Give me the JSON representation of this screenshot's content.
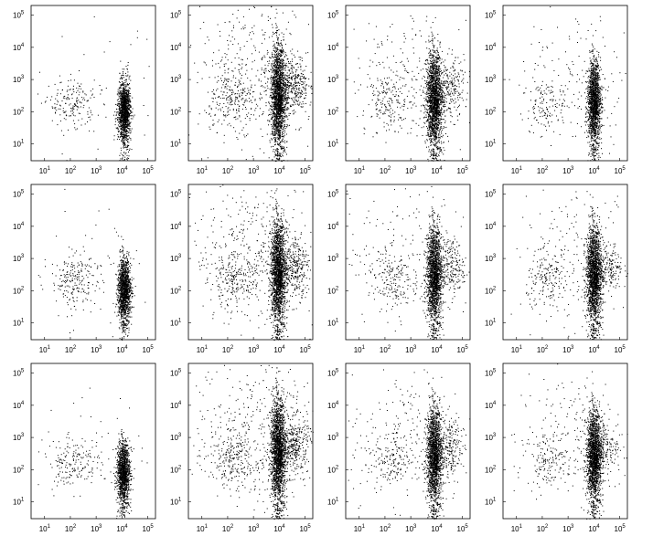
{
  "figure": {
    "rows": 3,
    "cols": 4,
    "background": "#ffffff",
    "dot_color": "#000000"
  },
  "chart_data": [
    {
      "type": "scatter",
      "row": 0,
      "col": 0,
      "xscale": "log",
      "yscale": "log",
      "xlim": [
        3,
        200000
      ],
      "ylim": [
        3,
        200000
      ],
      "xticks": [
        {
          "base": "10",
          "exp": "1"
        },
        {
          "base": "10",
          "exp": "2"
        },
        {
          "base": "10",
          "exp": "3"
        },
        {
          "base": "10",
          "exp": "4"
        },
        {
          "base": "10",
          "exp": "5"
        }
      ],
      "yticks": [
        {
          "base": "10",
          "exp": "1"
        },
        {
          "base": "10",
          "exp": "2"
        },
        {
          "base": "10",
          "exp": "3"
        },
        {
          "base": "10",
          "exp": "4"
        },
        {
          "base": "10",
          "exp": "5"
        }
      ],
      "populations": [
        {
          "x_center": 12000,
          "y_center": 120,
          "x_spread": 0.12,
          "y_spread": 0.45,
          "count": 1400,
          "shape": "column"
        },
        {
          "x_center": 120,
          "y_center": 180,
          "x_spread": 0.45,
          "y_spread": 0.35,
          "count": 160,
          "shape": "blob"
        },
        {
          "x_center": 1000,
          "y_center": 300,
          "x_spread": 1.2,
          "y_spread": 1.0,
          "count": 60,
          "shape": "scatter"
        }
      ]
    },
    {
      "type": "scatter",
      "row": 0,
      "col": 1,
      "xscale": "log",
      "yscale": "log",
      "xlim": [
        3,
        200000
      ],
      "ylim": [
        3,
        200000
      ],
      "xticks": [
        {
          "base": "10",
          "exp": "1"
        },
        {
          "base": "10",
          "exp": "2"
        },
        {
          "base": "10",
          "exp": "3"
        },
        {
          "base": "10",
          "exp": "4"
        },
        {
          "base": "10",
          "exp": "5"
        }
      ],
      "yticks": [
        {
          "base": "10",
          "exp": "1"
        },
        {
          "base": "10",
          "exp": "2"
        },
        {
          "base": "10",
          "exp": "3"
        },
        {
          "base": "10",
          "exp": "4"
        },
        {
          "base": "10",
          "exp": "5"
        }
      ],
      "populations": [
        {
          "x_center": 9000,
          "y_center": 400,
          "x_spread": 0.14,
          "y_spread": 0.75,
          "count": 2200,
          "shape": "column"
        },
        {
          "x_center": 40000,
          "y_center": 700,
          "x_spread": 0.25,
          "y_spread": 0.45,
          "count": 300,
          "shape": "blob"
        },
        {
          "x_center": 150,
          "y_center": 200,
          "x_spread": 0.45,
          "y_spread": 0.4,
          "count": 180,
          "shape": "blob"
        },
        {
          "x_center": 1000,
          "y_center": 1500,
          "x_spread": 1.2,
          "y_spread": 1.1,
          "count": 420,
          "shape": "scatter"
        }
      ]
    },
    {
      "type": "scatter",
      "row": 0,
      "col": 2,
      "xscale": "log",
      "yscale": "log",
      "xlim": [
        3,
        200000
      ],
      "ylim": [
        3,
        200000
      ],
      "xticks": [
        {
          "base": "10",
          "exp": "1"
        },
        {
          "base": "10",
          "exp": "2"
        },
        {
          "base": "10",
          "exp": "3"
        },
        {
          "base": "10",
          "exp": "4"
        },
        {
          "base": "10",
          "exp": "5"
        }
      ],
      "yticks": [
        {
          "base": "10",
          "exp": "1"
        },
        {
          "base": "10",
          "exp": "2"
        },
        {
          "base": "10",
          "exp": "3"
        },
        {
          "base": "10",
          "exp": "4"
        },
        {
          "base": "10",
          "exp": "5"
        }
      ],
      "populations": [
        {
          "x_center": 8000,
          "y_center": 300,
          "x_spread": 0.15,
          "y_spread": 0.7,
          "count": 2000,
          "shape": "column"
        },
        {
          "x_center": 35000,
          "y_center": 500,
          "x_spread": 0.25,
          "y_spread": 0.45,
          "count": 200,
          "shape": "blob"
        },
        {
          "x_center": 150,
          "y_center": 200,
          "x_spread": 0.4,
          "y_spread": 0.4,
          "count": 140,
          "shape": "blob"
        },
        {
          "x_center": 1000,
          "y_center": 1000,
          "x_spread": 1.2,
          "y_spread": 1.0,
          "count": 260,
          "shape": "scatter"
        }
      ]
    },
    {
      "type": "scatter",
      "row": 0,
      "col": 3,
      "xscale": "log",
      "yscale": "log",
      "xlim": [
        3,
        200000
      ],
      "ylim": [
        3,
        200000
      ],
      "xticks": [
        {
          "base": "10",
          "exp": "1"
        },
        {
          "base": "10",
          "exp": "2"
        },
        {
          "base": "10",
          "exp": "3"
        },
        {
          "base": "10",
          "exp": "4"
        },
        {
          "base": "10",
          "exp": "5"
        }
      ],
      "yticks": [
        {
          "base": "10",
          "exp": "1"
        },
        {
          "base": "10",
          "exp": "2"
        },
        {
          "base": "10",
          "exp": "3"
        },
        {
          "base": "10",
          "exp": "4"
        },
        {
          "base": "10",
          "exp": "5"
        }
      ],
      "populations": [
        {
          "x_center": 10000,
          "y_center": 250,
          "x_spread": 0.12,
          "y_spread": 0.6,
          "count": 1700,
          "shape": "column"
        },
        {
          "x_center": 150,
          "y_center": 150,
          "x_spread": 0.4,
          "y_spread": 0.35,
          "count": 110,
          "shape": "blob"
        },
        {
          "x_center": 2000,
          "y_center": 800,
          "x_spread": 1.2,
          "y_spread": 1.0,
          "count": 180,
          "shape": "scatter"
        }
      ]
    },
    {
      "type": "scatter",
      "row": 1,
      "col": 0,
      "xscale": "log",
      "yscale": "log",
      "xlim": [
        3,
        200000
      ],
      "ylim": [
        3,
        200000
      ],
      "xticks": [
        {
          "base": "10",
          "exp": "1"
        },
        {
          "base": "10",
          "exp": "2"
        },
        {
          "base": "10",
          "exp": "3"
        },
        {
          "base": "10",
          "exp": "4"
        },
        {
          "base": "10",
          "exp": "5"
        }
      ],
      "yticks": [
        {
          "base": "10",
          "exp": "1"
        },
        {
          "base": "10",
          "exp": "2"
        },
        {
          "base": "10",
          "exp": "3"
        },
        {
          "base": "10",
          "exp": "4"
        },
        {
          "base": "10",
          "exp": "5"
        }
      ],
      "populations": [
        {
          "x_center": 12000,
          "y_center": 130,
          "x_spread": 0.12,
          "y_spread": 0.45,
          "count": 1400,
          "shape": "column"
        },
        {
          "x_center": 130,
          "y_center": 220,
          "x_spread": 0.45,
          "y_spread": 0.4,
          "count": 200,
          "shape": "blob"
        },
        {
          "x_center": 1000,
          "y_center": 400,
          "x_spread": 1.2,
          "y_spread": 1.0,
          "count": 60,
          "shape": "scatter"
        }
      ]
    },
    {
      "type": "scatter",
      "row": 1,
      "col": 1,
      "xscale": "log",
      "yscale": "log",
      "xlim": [
        3,
        200000
      ],
      "ylim": [
        3,
        200000
      ],
      "xticks": [
        {
          "base": "10",
          "exp": "1"
        },
        {
          "base": "10",
          "exp": "2"
        },
        {
          "base": "10",
          "exp": "3"
        },
        {
          "base": "10",
          "exp": "4"
        },
        {
          "base": "10",
          "exp": "5"
        }
      ],
      "yticks": [
        {
          "base": "10",
          "exp": "1"
        },
        {
          "base": "10",
          "exp": "2"
        },
        {
          "base": "10",
          "exp": "3"
        },
        {
          "base": "10",
          "exp": "4"
        },
        {
          "base": "10",
          "exp": "5"
        }
      ],
      "populations": [
        {
          "x_center": 9000,
          "y_center": 500,
          "x_spread": 0.14,
          "y_spread": 0.75,
          "count": 2200,
          "shape": "column"
        },
        {
          "x_center": 40000,
          "y_center": 600,
          "x_spread": 0.25,
          "y_spread": 0.45,
          "count": 280,
          "shape": "blob"
        },
        {
          "x_center": 150,
          "y_center": 200,
          "x_spread": 0.45,
          "y_spread": 0.4,
          "count": 180,
          "shape": "blob"
        },
        {
          "x_center": 1000,
          "y_center": 1500,
          "x_spread": 1.2,
          "y_spread": 1.1,
          "count": 420,
          "shape": "scatter"
        }
      ]
    },
    {
      "type": "scatter",
      "row": 1,
      "col": 2,
      "xscale": "log",
      "yscale": "log",
      "xlim": [
        3,
        200000
      ],
      "ylim": [
        3,
        200000
      ],
      "xticks": [
        {
          "base": "10",
          "exp": "1"
        },
        {
          "base": "10",
          "exp": "2"
        },
        {
          "base": "10",
          "exp": "3"
        },
        {
          "base": "10",
          "exp": "4"
        },
        {
          "base": "10",
          "exp": "5"
        }
      ],
      "yticks": [
        {
          "base": "10",
          "exp": "1"
        },
        {
          "base": "10",
          "exp": "2"
        },
        {
          "base": "10",
          "exp": "3"
        },
        {
          "base": "10",
          "exp": "4"
        },
        {
          "base": "10",
          "exp": "5"
        }
      ],
      "populations": [
        {
          "x_center": 8000,
          "y_center": 400,
          "x_spread": 0.14,
          "y_spread": 0.7,
          "count": 1900,
          "shape": "column"
        },
        {
          "x_center": 35000,
          "y_center": 600,
          "x_spread": 0.25,
          "y_spread": 0.45,
          "count": 200,
          "shape": "blob"
        },
        {
          "x_center": 150,
          "y_center": 200,
          "x_spread": 0.4,
          "y_spread": 0.4,
          "count": 130,
          "shape": "blob"
        },
        {
          "x_center": 1000,
          "y_center": 1000,
          "x_spread": 1.2,
          "y_spread": 1.0,
          "count": 240,
          "shape": "scatter"
        }
      ]
    },
    {
      "type": "scatter",
      "row": 1,
      "col": 3,
      "xscale": "log",
      "yscale": "log",
      "xlim": [
        3,
        200000
      ],
      "ylim": [
        3,
        200000
      ],
      "xticks": [
        {
          "base": "10",
          "exp": "1"
        },
        {
          "base": "10",
          "exp": "2"
        },
        {
          "base": "10",
          "exp": "3"
        },
        {
          "base": "10",
          "exp": "4"
        },
        {
          "base": "10",
          "exp": "5"
        }
      ],
      "yticks": [
        {
          "base": "10",
          "exp": "1"
        },
        {
          "base": "10",
          "exp": "2"
        },
        {
          "base": "10",
          "exp": "3"
        },
        {
          "base": "10",
          "exp": "4"
        },
        {
          "base": "10",
          "exp": "5"
        }
      ],
      "populations": [
        {
          "x_center": 10000,
          "y_center": 400,
          "x_spread": 0.14,
          "y_spread": 0.7,
          "count": 2000,
          "shape": "column"
        },
        {
          "x_center": 40000,
          "y_center": 500,
          "x_spread": 0.25,
          "y_spread": 0.4,
          "count": 160,
          "shape": "blob"
        },
        {
          "x_center": 150,
          "y_center": 200,
          "x_spread": 0.4,
          "y_spread": 0.4,
          "count": 140,
          "shape": "blob"
        },
        {
          "x_center": 2000,
          "y_center": 1000,
          "x_spread": 1.2,
          "y_spread": 1.0,
          "count": 260,
          "shape": "scatter"
        }
      ]
    },
    {
      "type": "scatter",
      "row": 2,
      "col": 0,
      "xscale": "log",
      "yscale": "log",
      "xlim": [
        3,
        200000
      ],
      "ylim": [
        3,
        200000
      ],
      "xticks": [
        {
          "base": "10",
          "exp": "1"
        },
        {
          "base": "10",
          "exp": "2"
        },
        {
          "base": "10",
          "exp": "3"
        },
        {
          "base": "10",
          "exp": "4"
        },
        {
          "base": "10",
          "exp": "5"
        }
      ],
      "yticks": [
        {
          "base": "10",
          "exp": "1"
        },
        {
          "base": "10",
          "exp": "2"
        },
        {
          "base": "10",
          "exp": "3"
        },
        {
          "base": "10",
          "exp": "4"
        },
        {
          "base": "10",
          "exp": "5"
        }
      ],
      "populations": [
        {
          "x_center": 11000,
          "y_center": 100,
          "x_spread": 0.12,
          "y_spread": 0.45,
          "count": 1400,
          "shape": "column"
        },
        {
          "x_center": 120,
          "y_center": 180,
          "x_spread": 0.45,
          "y_spread": 0.35,
          "count": 160,
          "shape": "blob"
        },
        {
          "x_center": 1000,
          "y_center": 300,
          "x_spread": 1.2,
          "y_spread": 1.0,
          "count": 60,
          "shape": "scatter"
        }
      ]
    },
    {
      "type": "scatter",
      "row": 2,
      "col": 1,
      "xscale": "log",
      "yscale": "log",
      "xlim": [
        3,
        200000
      ],
      "ylim": [
        3,
        200000
      ],
      "xticks": [
        {
          "base": "10",
          "exp": "1"
        },
        {
          "base": "10",
          "exp": "2"
        },
        {
          "base": "10",
          "exp": "3"
        },
        {
          "base": "10",
          "exp": "4"
        },
        {
          "base": "10",
          "exp": "5"
        }
      ],
      "yticks": [
        {
          "base": "10",
          "exp": "1"
        },
        {
          "base": "10",
          "exp": "2"
        },
        {
          "base": "10",
          "exp": "3"
        },
        {
          "base": "10",
          "exp": "4"
        },
        {
          "base": "10",
          "exp": "5"
        }
      ],
      "populations": [
        {
          "x_center": 9000,
          "y_center": 500,
          "x_spread": 0.14,
          "y_spread": 0.75,
          "count": 2200,
          "shape": "column"
        },
        {
          "x_center": 40000,
          "y_center": 600,
          "x_spread": 0.25,
          "y_spread": 0.45,
          "count": 300,
          "shape": "blob"
        },
        {
          "x_center": 150,
          "y_center": 200,
          "x_spread": 0.45,
          "y_spread": 0.4,
          "count": 180,
          "shape": "blob"
        },
        {
          "x_center": 1000,
          "y_center": 1500,
          "x_spread": 1.2,
          "y_spread": 1.1,
          "count": 420,
          "shape": "scatter"
        }
      ]
    },
    {
      "type": "scatter",
      "row": 2,
      "col": 2,
      "xscale": "log",
      "yscale": "log",
      "xlim": [
        3,
        200000
      ],
      "ylim": [
        3,
        200000
      ],
      "xticks": [
        {
          "base": "10",
          "exp": "1"
        },
        {
          "base": "10",
          "exp": "2"
        },
        {
          "base": "10",
          "exp": "3"
        },
        {
          "base": "10",
          "exp": "4"
        },
        {
          "base": "10",
          "exp": "5"
        }
      ],
      "yticks": [
        {
          "base": "10",
          "exp": "1"
        },
        {
          "base": "10",
          "exp": "2"
        },
        {
          "base": "10",
          "exp": "3"
        },
        {
          "base": "10",
          "exp": "4"
        },
        {
          "base": "10",
          "exp": "5"
        }
      ],
      "populations": [
        {
          "x_center": 8000,
          "y_center": 350,
          "x_spread": 0.14,
          "y_spread": 0.7,
          "count": 1900,
          "shape": "column"
        },
        {
          "x_center": 35000,
          "y_center": 500,
          "x_spread": 0.25,
          "y_spread": 0.45,
          "count": 200,
          "shape": "blob"
        },
        {
          "x_center": 150,
          "y_center": 150,
          "x_spread": 0.4,
          "y_spread": 0.4,
          "count": 130,
          "shape": "blob"
        },
        {
          "x_center": 1000,
          "y_center": 1000,
          "x_spread": 1.2,
          "y_spread": 1.0,
          "count": 260,
          "shape": "scatter"
        }
      ]
    },
    {
      "type": "scatter",
      "row": 2,
      "col": 3,
      "xscale": "log",
      "yscale": "log",
      "xlim": [
        3,
        200000
      ],
      "ylim": [
        3,
        200000
      ],
      "xticks": [
        {
          "base": "10",
          "exp": "1"
        },
        {
          "base": "10",
          "exp": "2"
        },
        {
          "base": "10",
          "exp": "3"
        },
        {
          "base": "10",
          "exp": "4"
        },
        {
          "base": "10",
          "exp": "5"
        }
      ],
      "yticks": [
        {
          "base": "10",
          "exp": "1"
        },
        {
          "base": "10",
          "exp": "2"
        },
        {
          "base": "10",
          "exp": "3"
        },
        {
          "base": "10",
          "exp": "4"
        },
        {
          "base": "10",
          "exp": "5"
        }
      ],
      "populations": [
        {
          "x_center": 10000,
          "y_center": 350,
          "x_spread": 0.14,
          "y_spread": 0.65,
          "count": 1900,
          "shape": "column"
        },
        {
          "x_center": 30000,
          "y_center": 500,
          "x_spread": 0.25,
          "y_spread": 0.4,
          "count": 140,
          "shape": "blob"
        },
        {
          "x_center": 150,
          "y_center": 200,
          "x_spread": 0.4,
          "y_spread": 0.4,
          "count": 140,
          "shape": "blob"
        },
        {
          "x_center": 2000,
          "y_center": 1000,
          "x_spread": 1.2,
          "y_spread": 1.0,
          "count": 220,
          "shape": "scatter"
        }
      ]
    }
  ]
}
